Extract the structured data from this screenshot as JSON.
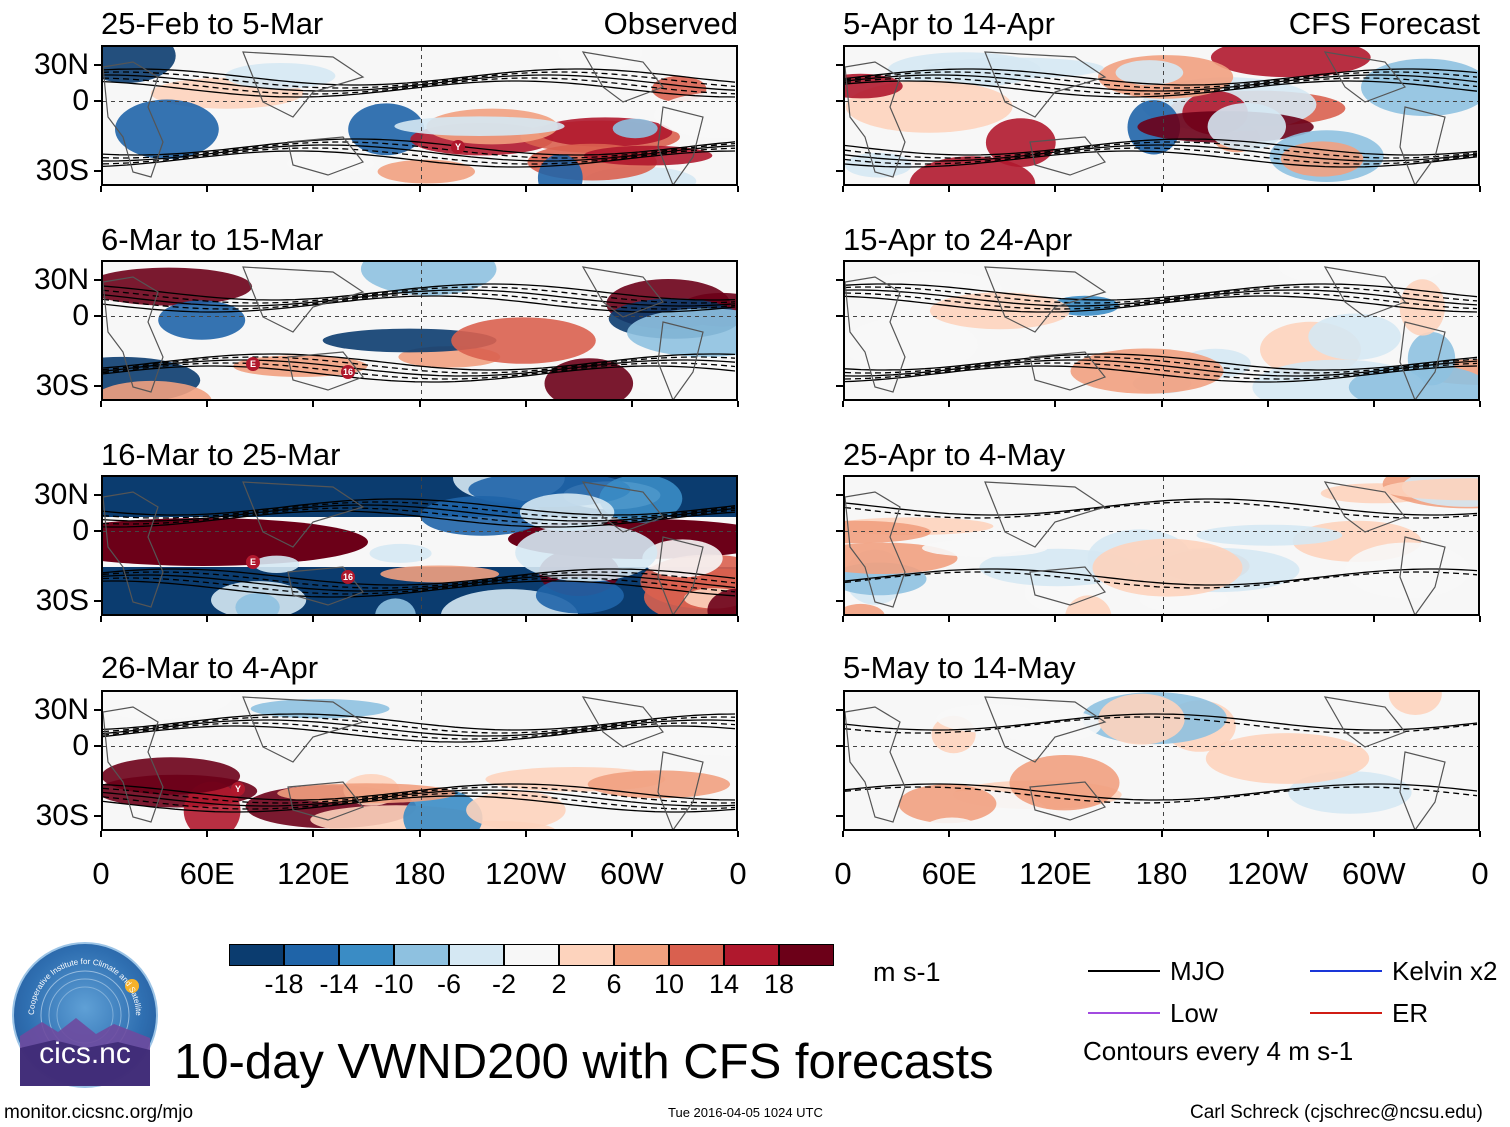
{
  "panels_left": [
    {
      "title": "25-Feb to 5-Mar",
      "tag": "Observed",
      "labels": [
        "Y"
      ]
    },
    {
      "title": "6-Mar to 15-Mar",
      "tag": "",
      "labels": [
        "E",
        "16"
      ]
    },
    {
      "title": "16-Mar to 25-Mar",
      "tag": "",
      "labels": [
        "E",
        "16"
      ]
    },
    {
      "title": "26-Mar to 4-Apr",
      "tag": "",
      "labels": [
        "Y"
      ]
    }
  ],
  "panels_right": [
    {
      "title": "5-Apr to 14-Apr",
      "tag": "CFS Forecast"
    },
    {
      "title": "15-Apr to 24-Apr",
      "tag": ""
    },
    {
      "title": "25-Apr to 4-May",
      "tag": ""
    },
    {
      "title": "5-May to 14-May",
      "tag": ""
    }
  ],
  "chart_data": {
    "type": "heatmap",
    "title": "10-day VWND200 with CFS forecasts",
    "variable": "VWND200",
    "units": "m s-1",
    "y_ticks": [
      "30N",
      "0",
      "30S"
    ],
    "x_ticks": [
      "0",
      "60E",
      "120E",
      "180",
      "120W",
      "60W",
      "0"
    ],
    "colorbar_ticks": [
      "-18",
      "-14",
      "-10",
      "-6",
      "-2",
      "2",
      "6",
      "10",
      "14",
      "18"
    ],
    "colorbar_colors": [
      "#0b3c6f",
      "#1f64a8",
      "#3a8cc5",
      "#8ec1e0",
      "#d5e8f3",
      "#f7f7f7",
      "#fdd3bd",
      "#f1a07f",
      "#d9604f",
      "#b0182d",
      "#6c0018"
    ],
    "contour_note": "Contours every 4 m s-1",
    "legend": [
      {
        "label": "MJO",
        "color": "#000000"
      },
      {
        "label": "Kelvin x2",
        "color": "#1a36d8"
      },
      {
        "label": "Low",
        "color": "#a24be0"
      },
      {
        "label": "ER",
        "color": "#d01c14"
      }
    ]
  },
  "footer": {
    "left": "monitor.cicsnc.org/mjo",
    "center": "Tue 2016-04-05 1024 UTC",
    "right": "Carl Schreck (cjschrec@ncsu.edu)"
  },
  "logo": {
    "text": "cics.nc",
    "ring_text": "Cooperative Institute for Climate and Satellites"
  }
}
